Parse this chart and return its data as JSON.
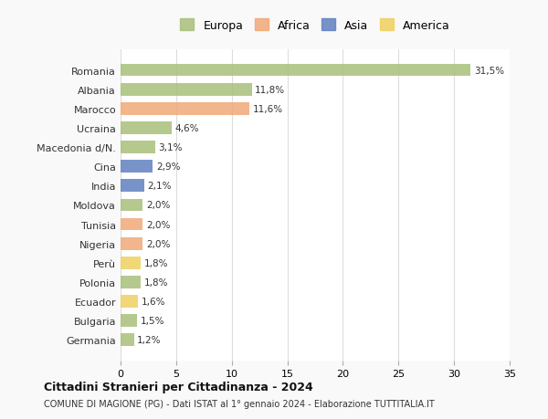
{
  "countries": [
    "Romania",
    "Albania",
    "Marocco",
    "Ucraina",
    "Macedonia d/N.",
    "Cina",
    "India",
    "Moldova",
    "Tunisia",
    "Nigeria",
    "Perù",
    "Polonia",
    "Ecuador",
    "Bulgaria",
    "Germania"
  ],
  "values": [
    31.5,
    11.8,
    11.6,
    4.6,
    3.1,
    2.9,
    2.1,
    2.0,
    2.0,
    2.0,
    1.8,
    1.8,
    1.6,
    1.5,
    1.2
  ],
  "labels": [
    "31,5%",
    "11,8%",
    "11,6%",
    "4,6%",
    "3,1%",
    "2,9%",
    "2,1%",
    "2,0%",
    "2,0%",
    "2,0%",
    "1,8%",
    "1,8%",
    "1,6%",
    "1,5%",
    "1,2%"
  ],
  "continents": [
    "Europa",
    "Europa",
    "Africa",
    "Europa",
    "Europa",
    "Asia",
    "Asia",
    "Europa",
    "Africa",
    "Africa",
    "America",
    "Europa",
    "America",
    "Europa",
    "Europa"
  ],
  "colors": {
    "Europa": "#a8c07a",
    "Africa": "#f0a878",
    "Asia": "#6080c0",
    "America": "#f0d060"
  },
  "legend_order": [
    "Europa",
    "Africa",
    "Asia",
    "America"
  ],
  "title1": "Cittadini Stranieri per Cittadinanza - 2024",
  "title2": "COMUNE DI MAGIONE (PG) - Dati ISTAT al 1° gennaio 2024 - Elaborazione TUTTITALIA.IT",
  "xlim": [
    0,
    35
  ],
  "xticks": [
    0,
    5,
    10,
    15,
    20,
    25,
    30,
    35
  ],
  "background_color": "#f9f9f9",
  "bar_background": "#ffffff",
  "grid_color": "#dddddd"
}
